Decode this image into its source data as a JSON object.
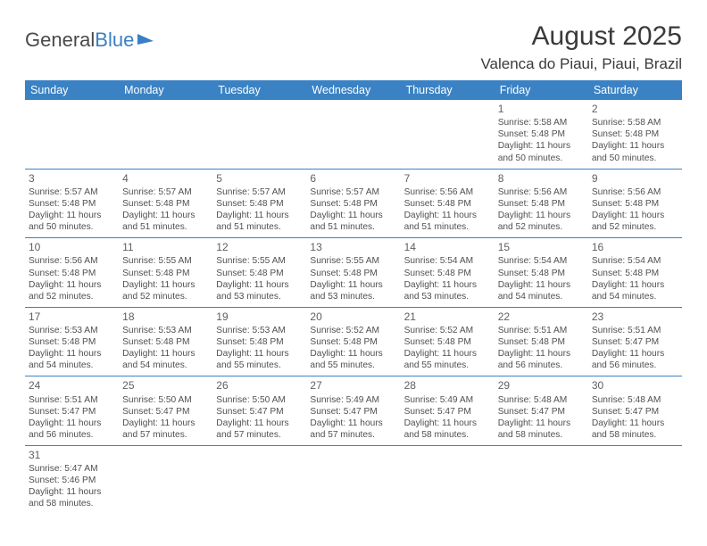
{
  "logo": {
    "text1": "General",
    "text2": "Blue"
  },
  "title": "August 2025",
  "location": "Valenca do Piaui, Piaui, Brazil",
  "header_bg": "#3a82c4",
  "days": [
    "Sunday",
    "Monday",
    "Tuesday",
    "Wednesday",
    "Thursday",
    "Friday",
    "Saturday"
  ],
  "weeks": [
    [
      null,
      null,
      null,
      null,
      null,
      {
        "n": "1",
        "sr": "5:58 AM",
        "ss": "5:48 PM",
        "dl": "11 hours and 50 minutes."
      },
      {
        "n": "2",
        "sr": "5:58 AM",
        "ss": "5:48 PM",
        "dl": "11 hours and 50 minutes."
      }
    ],
    [
      {
        "n": "3",
        "sr": "5:57 AM",
        "ss": "5:48 PM",
        "dl": "11 hours and 50 minutes."
      },
      {
        "n": "4",
        "sr": "5:57 AM",
        "ss": "5:48 PM",
        "dl": "11 hours and 51 minutes."
      },
      {
        "n": "5",
        "sr": "5:57 AM",
        "ss": "5:48 PM",
        "dl": "11 hours and 51 minutes."
      },
      {
        "n": "6",
        "sr": "5:57 AM",
        "ss": "5:48 PM",
        "dl": "11 hours and 51 minutes."
      },
      {
        "n": "7",
        "sr": "5:56 AM",
        "ss": "5:48 PM",
        "dl": "11 hours and 51 minutes."
      },
      {
        "n": "8",
        "sr": "5:56 AM",
        "ss": "5:48 PM",
        "dl": "11 hours and 52 minutes."
      },
      {
        "n": "9",
        "sr": "5:56 AM",
        "ss": "5:48 PM",
        "dl": "11 hours and 52 minutes."
      }
    ],
    [
      {
        "n": "10",
        "sr": "5:56 AM",
        "ss": "5:48 PM",
        "dl": "11 hours and 52 minutes."
      },
      {
        "n": "11",
        "sr": "5:55 AM",
        "ss": "5:48 PM",
        "dl": "11 hours and 52 minutes."
      },
      {
        "n": "12",
        "sr": "5:55 AM",
        "ss": "5:48 PM",
        "dl": "11 hours and 53 minutes."
      },
      {
        "n": "13",
        "sr": "5:55 AM",
        "ss": "5:48 PM",
        "dl": "11 hours and 53 minutes."
      },
      {
        "n": "14",
        "sr": "5:54 AM",
        "ss": "5:48 PM",
        "dl": "11 hours and 53 minutes."
      },
      {
        "n": "15",
        "sr": "5:54 AM",
        "ss": "5:48 PM",
        "dl": "11 hours and 54 minutes."
      },
      {
        "n": "16",
        "sr": "5:54 AM",
        "ss": "5:48 PM",
        "dl": "11 hours and 54 minutes."
      }
    ],
    [
      {
        "n": "17",
        "sr": "5:53 AM",
        "ss": "5:48 PM",
        "dl": "11 hours and 54 minutes."
      },
      {
        "n": "18",
        "sr": "5:53 AM",
        "ss": "5:48 PM",
        "dl": "11 hours and 54 minutes."
      },
      {
        "n": "19",
        "sr": "5:53 AM",
        "ss": "5:48 PM",
        "dl": "11 hours and 55 minutes."
      },
      {
        "n": "20",
        "sr": "5:52 AM",
        "ss": "5:48 PM",
        "dl": "11 hours and 55 minutes."
      },
      {
        "n": "21",
        "sr": "5:52 AM",
        "ss": "5:48 PM",
        "dl": "11 hours and 55 minutes."
      },
      {
        "n": "22",
        "sr": "5:51 AM",
        "ss": "5:48 PM",
        "dl": "11 hours and 56 minutes."
      },
      {
        "n": "23",
        "sr": "5:51 AM",
        "ss": "5:47 PM",
        "dl": "11 hours and 56 minutes."
      }
    ],
    [
      {
        "n": "24",
        "sr": "5:51 AM",
        "ss": "5:47 PM",
        "dl": "11 hours and 56 minutes."
      },
      {
        "n": "25",
        "sr": "5:50 AM",
        "ss": "5:47 PM",
        "dl": "11 hours and 57 minutes."
      },
      {
        "n": "26",
        "sr": "5:50 AM",
        "ss": "5:47 PM",
        "dl": "11 hours and 57 minutes."
      },
      {
        "n": "27",
        "sr": "5:49 AM",
        "ss": "5:47 PM",
        "dl": "11 hours and 57 minutes."
      },
      {
        "n": "28",
        "sr": "5:49 AM",
        "ss": "5:47 PM",
        "dl": "11 hours and 58 minutes."
      },
      {
        "n": "29",
        "sr": "5:48 AM",
        "ss": "5:47 PM",
        "dl": "11 hours and 58 minutes."
      },
      {
        "n": "30",
        "sr": "5:48 AM",
        "ss": "5:47 PM",
        "dl": "11 hours and 58 minutes."
      }
    ],
    [
      {
        "n": "31",
        "sr": "5:47 AM",
        "ss": "5:46 PM",
        "dl": "11 hours and 58 minutes."
      },
      null,
      null,
      null,
      null,
      null,
      null
    ]
  ],
  "labels": {
    "sunrise": "Sunrise: ",
    "sunset": "Sunset: ",
    "daylight": "Daylight: "
  }
}
